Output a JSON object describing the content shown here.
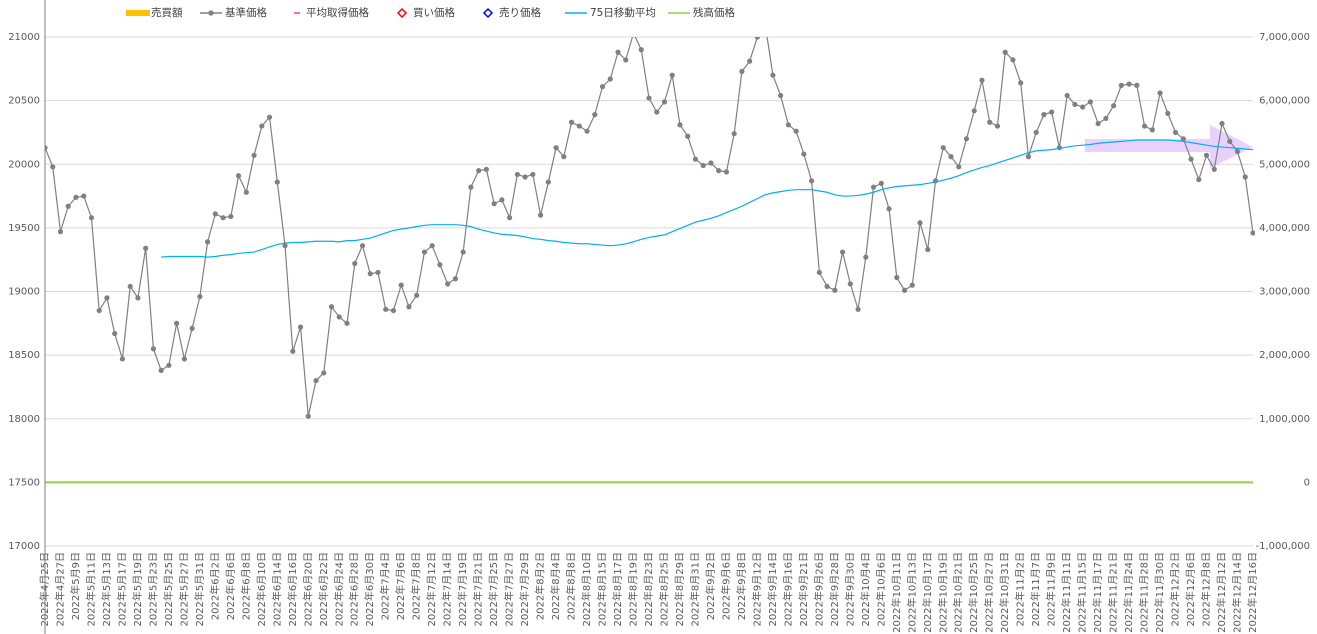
{
  "chart_data": {
    "type": "line",
    "categories": [
      "2022年4月25日",
      null,
      "2022年4月27日",
      null,
      "2022年5月9日",
      null,
      "2022年5月11日",
      null,
      "2022年5月13日",
      null,
      "2022年5月17日",
      null,
      "2022年5月19日",
      null,
      "2022年5月23日",
      null,
      "2022年5月25日",
      null,
      "2022年5月27日",
      null,
      "2022年5月31日",
      null,
      "2022年6月2日",
      null,
      "2022年6月6日",
      null,
      "2022年6月8日",
      null,
      "2022年6月10日",
      null,
      "2022年6月14日",
      null,
      "2022年6月16日",
      null,
      "2022年6月20日",
      null,
      "2022年6月22日",
      null,
      "2022年6月24日",
      null,
      "2022年6月28日",
      null,
      "2022年6月30日",
      null,
      "2022年7月4日",
      null,
      "2022年7月6日",
      null,
      "2022年7月8日",
      null,
      "2022年7月12日",
      null,
      "2022年7月14日",
      null,
      "2022年7月19日",
      null,
      "2022年7月21日",
      null,
      "2022年7月25日",
      null,
      "2022年7月27日",
      null,
      "2022年7月29日",
      null,
      "2022年8月2日",
      null,
      "2022年8月4日",
      null,
      "2022年8月8日",
      null,
      "2022年8月10日",
      null,
      "2022年8月15日",
      null,
      "2022年8月17日",
      null,
      "2022年8月19日",
      null,
      "2022年8月23日",
      null,
      "2022年8月25日",
      null,
      "2022年8月29日",
      null,
      "2022年8月31日",
      null,
      "2022年9月2日",
      null,
      "2022年9月6日",
      null,
      "2022年9月8日",
      null,
      "2022年9月12日",
      null,
      "2022年9月14日",
      null,
      "2022年9月16日",
      null,
      "2022年9月21日",
      null,
      "2022年9月26日",
      null,
      "2022年9月28日",
      null,
      "2022年9月30日",
      null,
      "2022年10月4日",
      null,
      "2022年10月6日",
      null,
      "2022年10月11日",
      null,
      "2022年10月13日",
      null,
      "2022年10月17日",
      null,
      "2022年10月19日",
      null,
      "2022年10月21日",
      null,
      "2022年10月25日",
      null,
      "2022年10月27日",
      null,
      "2022年10月31日",
      null,
      "2022年11月2日",
      null,
      "2022年11月7日",
      null,
      "2022年11月9日",
      null,
      "2022年11月11日",
      null,
      "2022年11月15日",
      null,
      "2022年11月17日",
      null,
      "2022年11月21日",
      null,
      "2022年11月24日",
      null,
      "2022年11月28日",
      null,
      "2022年11月30日",
      null,
      "2022年12月2日",
      null,
      "2022年12月6日",
      null,
      "2022年12月8日",
      null,
      "2022年12月12日",
      null,
      "2022年12月14日",
      null,
      "2022年12月16日"
    ],
    "series": [
      {
        "name": "売買額",
        "color": "#ffc000",
        "marker": "bar",
        "axis": "y2"
      },
      {
        "name": "基準価格",
        "color": "#808080",
        "marker": "line-dot",
        "values": [
          20130,
          19980,
          19470,
          19670,
          19740,
          19750,
          19580,
          18850,
          18950,
          18670,
          18470,
          19040,
          18950,
          19340,
          18550,
          18380,
          18420,
          18750,
          18470,
          18710,
          18960,
          19390,
          19610,
          19580,
          19590,
          19910,
          19780,
          20070,
          20300,
          20370,
          19860,
          19360,
          18530,
          18720,
          18020,
          18300,
          18360,
          18880,
          18800,
          18750,
          19220,
          19360,
          19140,
          19150,
          18860,
          18850,
          19050,
          18880,
          18970,
          19310,
          19360,
          19210,
          19060,
          19100,
          19310,
          19820,
          19950,
          19960,
          19690,
          19720,
          19580,
          19920,
          19900,
          19920,
          19600,
          19860,
          20130,
          20060,
          20330,
          20300,
          20260,
          20390,
          20610,
          20670,
          20880,
          20820,
          21030,
          20900,
          20520,
          20410,
          20490,
          20700,
          20310,
          20220,
          20040,
          19990,
          20010,
          19950,
          19940,
          20240,
          20730,
          20810,
          21000,
          21100,
          20700,
          20540,
          20310,
          20260,
          20080,
          19870,
          19150,
          19040,
          19010,
          19310,
          19060,
          18860,
          19270,
          19820,
          19850,
          19650,
          19110,
          19010,
          19050,
          19540,
          19330,
          19870,
          20130,
          20060,
          19980,
          20200,
          20420,
          20660,
          20330,
          20300,
          20880,
          20820,
          20640,
          20060,
          20250,
          20390,
          20410,
          20130,
          20540,
          20470,
          20450,
          20490,
          20320,
          20360,
          20460,
          20620,
          20630,
          20620,
          20300,
          20270,
          20560,
          20400,
          20250,
          20200,
          20040,
          19880,
          20070,
          19960,
          20320,
          20180,
          20100,
          19900,
          19460
        ]
      },
      {
        "name": "平均取得価格",
        "color": "#ff66cc",
        "marker": "dash"
      },
      {
        "name": "買い価格",
        "color": "#ff0000",
        "marker": "diamond"
      },
      {
        "name": "売り価格",
        "color": "#0000ff",
        "marker": "diamond"
      },
      {
        "name": "75日移動平均",
        "color": "#00b0f0",
        "marker": "line",
        "values": [
          null,
          null,
          null,
          null,
          null,
          null,
          null,
          null,
          null,
          null,
          null,
          null,
          null,
          null,
          null,
          19270,
          19275,
          19275,
          19275,
          19275,
          19275,
          19270,
          19275,
          19285,
          19290,
          19300,
          19305,
          19310,
          19330,
          19350,
          19370,
          19380,
          19385,
          19385,
          19390,
          19395,
          19395,
          19395,
          19390,
          19400,
          19400,
          19410,
          19420,
          19440,
          19460,
          19480,
          19490,
          19500,
          19510,
          19520,
          19525,
          19525,
          19525,
          19525,
          19520,
          19510,
          19490,
          19475,
          19460,
          19450,
          19445,
          19440,
          19430,
          19415,
          19410,
          19400,
          19395,
          19385,
          19380,
          19375,
          19375,
          19370,
          19365,
          19360,
          19365,
          19375,
          19390,
          19410,
          19425,
          19435,
          19445,
          19470,
          19495,
          19520,
          19545,
          19560,
          19575,
          19595,
          19620,
          19645,
          19670,
          19700,
          19730,
          19760,
          19775,
          19785,
          19795,
          19800,
          19800,
          19800,
          19790,
          19780,
          19760,
          19750,
          19750,
          19755,
          19765,
          19780,
          19800,
          19815,
          19825,
          19830,
          19835,
          19840,
          19850,
          19860,
          19875,
          19890,
          19910,
          19935,
          19955,
          19975,
          19990,
          20010,
          20030,
          20050,
          20070,
          20090,
          20105,
          20110,
          20115,
          20125,
          20135,
          20145,
          20150,
          20155,
          20165,
          20170,
          20175,
          20180,
          20185,
          20190,
          20190,
          20190,
          20190,
          20190,
          20185,
          20180,
          20170,
          20160,
          20150,
          20140,
          20135,
          20130,
          20125,
          20120,
          20115
        ]
      },
      {
        "name": "残高価格",
        "color": "#92d050",
        "marker": "line",
        "axis": "y2",
        "values": [
          0,
          0,
          0,
          0,
          0,
          0,
          0,
          0,
          0,
          0,
          0,
          0,
          0,
          0,
          0,
          0,
          0,
          0,
          0,
          0,
          0,
          0,
          0,
          0,
          0,
          0,
          0,
          0,
          0,
          0,
          0,
          0,
          0,
          0,
          0,
          0,
          0,
          0,
          0,
          0,
          0,
          0,
          0,
          0,
          0,
          0,
          0,
          0,
          0,
          0,
          0,
          0,
          0,
          0,
          0,
          0,
          0,
          0,
          0,
          0,
          0,
          0,
          0,
          0,
          0,
          0,
          0,
          0,
          0,
          0,
          0,
          0,
          0,
          0,
          0,
          0,
          0,
          0,
          0,
          0,
          0,
          0,
          0,
          0,
          0,
          0,
          0,
          0,
          0,
          0,
          0,
          0,
          0,
          0,
          0,
          0,
          0,
          0,
          0,
          0,
          0,
          0,
          0,
          0,
          0,
          0,
          0,
          0,
          0,
          0,
          0,
          0,
          0,
          0,
          0,
          0,
          0,
          0,
          0,
          0,
          0,
          0,
          0,
          0,
          0,
          0,
          0,
          0,
          0,
          0,
          0,
          0,
          0,
          0,
          0,
          0,
          0,
          0,
          0,
          0,
          0,
          0,
          0,
          0,
          0,
          0,
          0,
          0,
          0,
          0,
          0,
          0,
          0,
          0,
          0,
          0,
          0
        ]
      }
    ],
    "ylim": [
      17000,
      21000
    ],
    "yticks": [
      17000,
      17500,
      18000,
      18500,
      19000,
      19500,
      20000,
      20500,
      21000
    ],
    "y2lim": [
      -1000000,
      7000000
    ],
    "y2ticks": [
      {
        "value": -1000000,
        "label": "-1,000,000"
      },
      {
        "value": 0,
        "label": "0"
      },
      {
        "value": 1000000,
        "label": "1,000,000"
      },
      {
        "value": 2000000,
        "label": "2,000,000"
      },
      {
        "value": 3000000,
        "label": "3,000,000"
      },
      {
        "value": 4000000,
        "label": "4,000,000"
      },
      {
        "value": 5000000,
        "label": "5,000,000"
      },
      {
        "value": 6000000,
        "label": "6,000,000"
      },
      {
        "value": 7000000,
        "label": "7,000,000"
      }
    ],
    "grid": true,
    "legend": "top"
  }
}
